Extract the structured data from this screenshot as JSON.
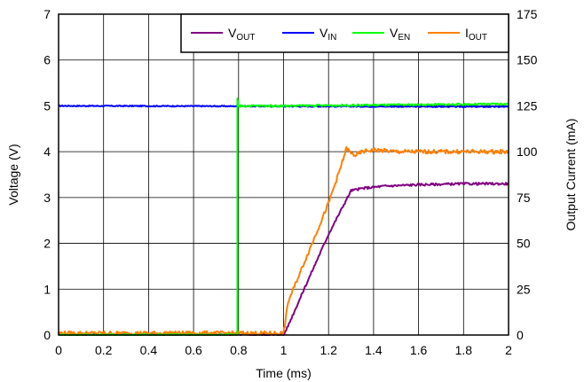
{
  "chart_data": {
    "type": "line",
    "title": "",
    "xlabel": "Time (ms)",
    "ylabel": "Voltage (V)",
    "y2label": "Output Current (mA)",
    "xlim": [
      0,
      2
    ],
    "ylim": [
      0,
      7
    ],
    "y2lim": [
      0,
      175
    ],
    "x_ticks": [
      "0",
      "0.2",
      "0.4",
      "0.6",
      "0.8",
      "1",
      "1.2",
      "1.4",
      "1.6",
      "1.8",
      "2"
    ],
    "y_ticks": [
      "0",
      "1",
      "2",
      "3",
      "4",
      "5",
      "6",
      "7"
    ],
    "y2_ticks": [
      "0",
      "25",
      "50",
      "75",
      "100",
      "125",
      "150",
      "175"
    ],
    "grid": true,
    "legend_position": "top-right",
    "series": [
      {
        "name": "VOUT",
        "label_main": "V",
        "label_sub": "OUT",
        "axis": "left",
        "color": "#800080",
        "x": [
          0,
          1.0,
          1.02,
          1.1,
          1.2,
          1.3,
          1.35,
          1.45,
          1.6,
          1.8,
          2.0
        ],
        "y": [
          0,
          0,
          0.2,
          1.1,
          2.2,
          3.15,
          3.2,
          3.25,
          3.28,
          3.3,
          3.3
        ]
      },
      {
        "name": "VIN",
        "label_main": "V",
        "label_sub": "IN",
        "axis": "left",
        "color": "#0000ff",
        "x": [
          0,
          2.0
        ],
        "y": [
          5.0,
          4.98
        ]
      },
      {
        "name": "VEN",
        "label_main": "V",
        "label_sub": "EN",
        "axis": "left",
        "color": "#00ff00",
        "x": [
          0,
          0.795,
          0.795,
          0.8,
          0.81,
          1.0,
          1.5,
          2.0
        ],
        "y": [
          0,
          0,
          5.15,
          4.97,
          5.0,
          5.0,
          5.02,
          5.04
        ]
      },
      {
        "name": "IOUT",
        "label_main": "I",
        "label_sub": "OUT",
        "axis": "right",
        "color": "#ff8000",
        "x": [
          0,
          1.0,
          1.005,
          1.02,
          1.1,
          1.2,
          1.25,
          1.28,
          1.3,
          1.32,
          1.35,
          1.4,
          1.5,
          1.6,
          1.8,
          2.0
        ],
        "y": [
          1,
          1,
          5,
          18,
          42,
          72,
          90,
          102,
          99,
          98,
          100,
          101,
          100,
          100,
          100,
          100
        ]
      }
    ]
  }
}
